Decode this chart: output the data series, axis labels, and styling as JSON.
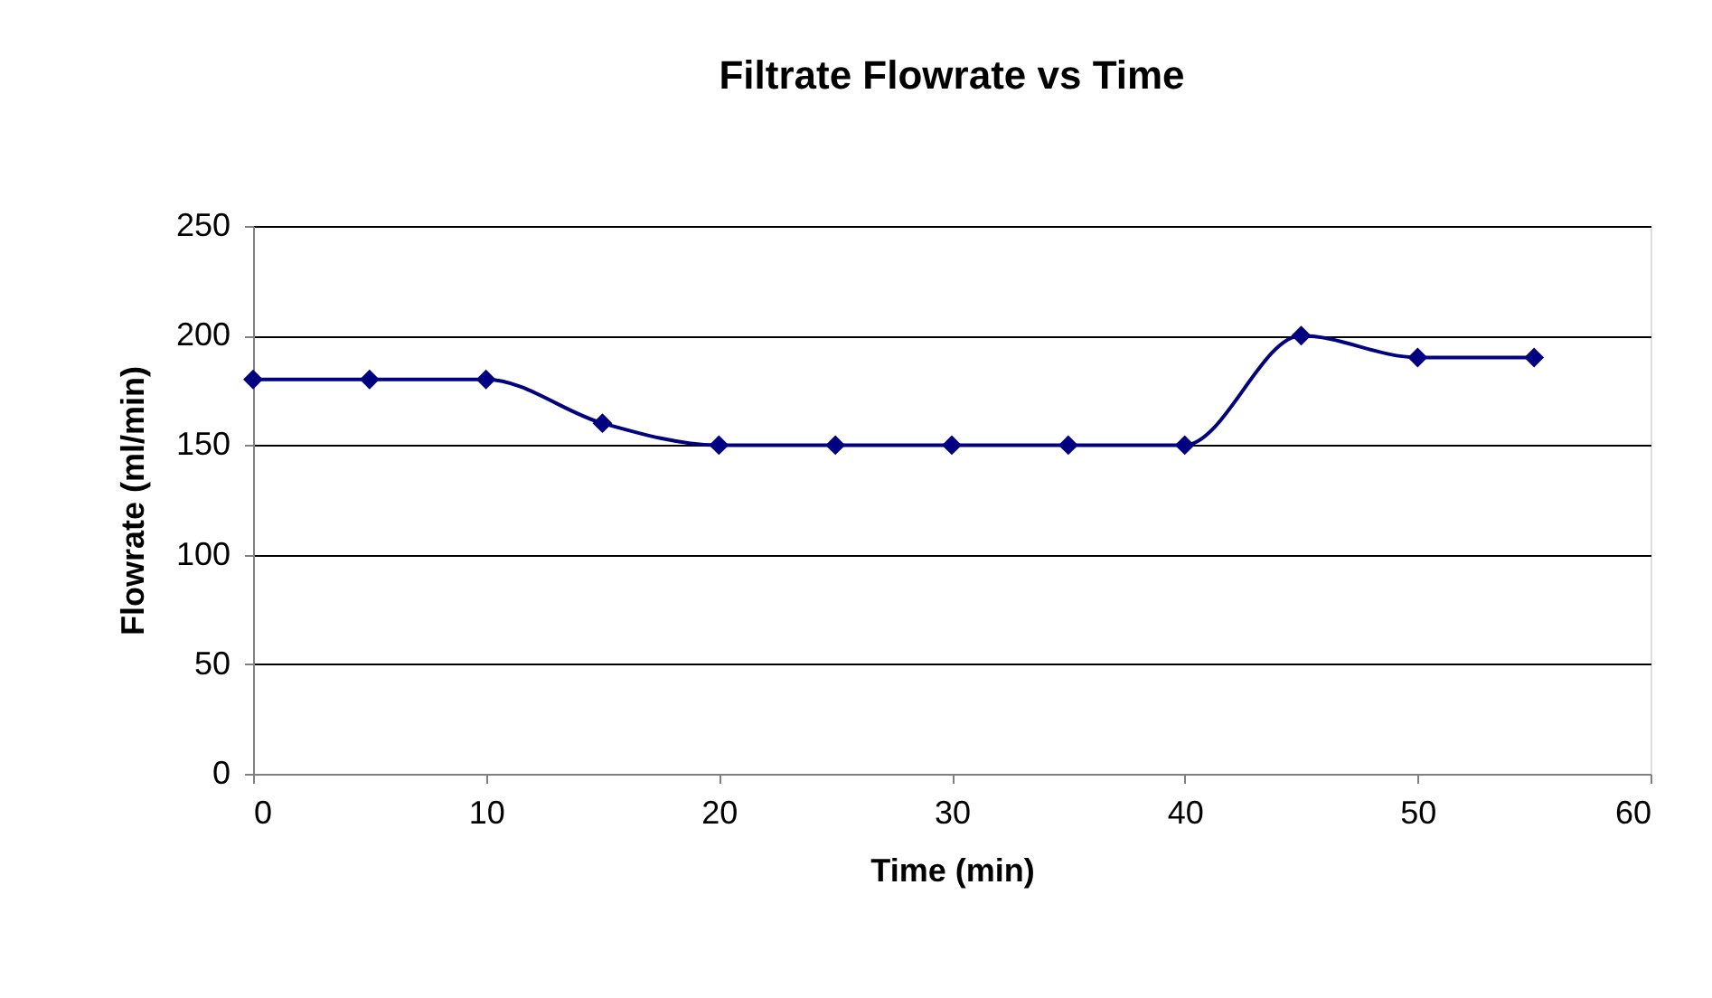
{
  "chart_data": {
    "type": "line",
    "title": "Filtrate Flowrate vs Time",
    "xlabel": "Time   (min)",
    "ylabel": "Flowrate  (ml/min)",
    "x": [
      0,
      5,
      10,
      15,
      20,
      25,
      30,
      35,
      40,
      45,
      50,
      55
    ],
    "series": [
      {
        "color": "#000080",
        "values": [
          180,
          180,
          180,
          160,
          150,
          150,
          150,
          150,
          150,
          200,
          190,
          190
        ]
      }
    ],
    "xlim": [
      0,
      60
    ],
    "xticks": [
      0,
      10,
      20,
      30,
      40,
      50,
      60
    ],
    "ylim": [
      0,
      250
    ],
    "yticks": [
      0,
      50,
      100,
      150,
      200,
      250
    ],
    "grid": "y",
    "marker": "diamond",
    "line_style": "solid"
  }
}
